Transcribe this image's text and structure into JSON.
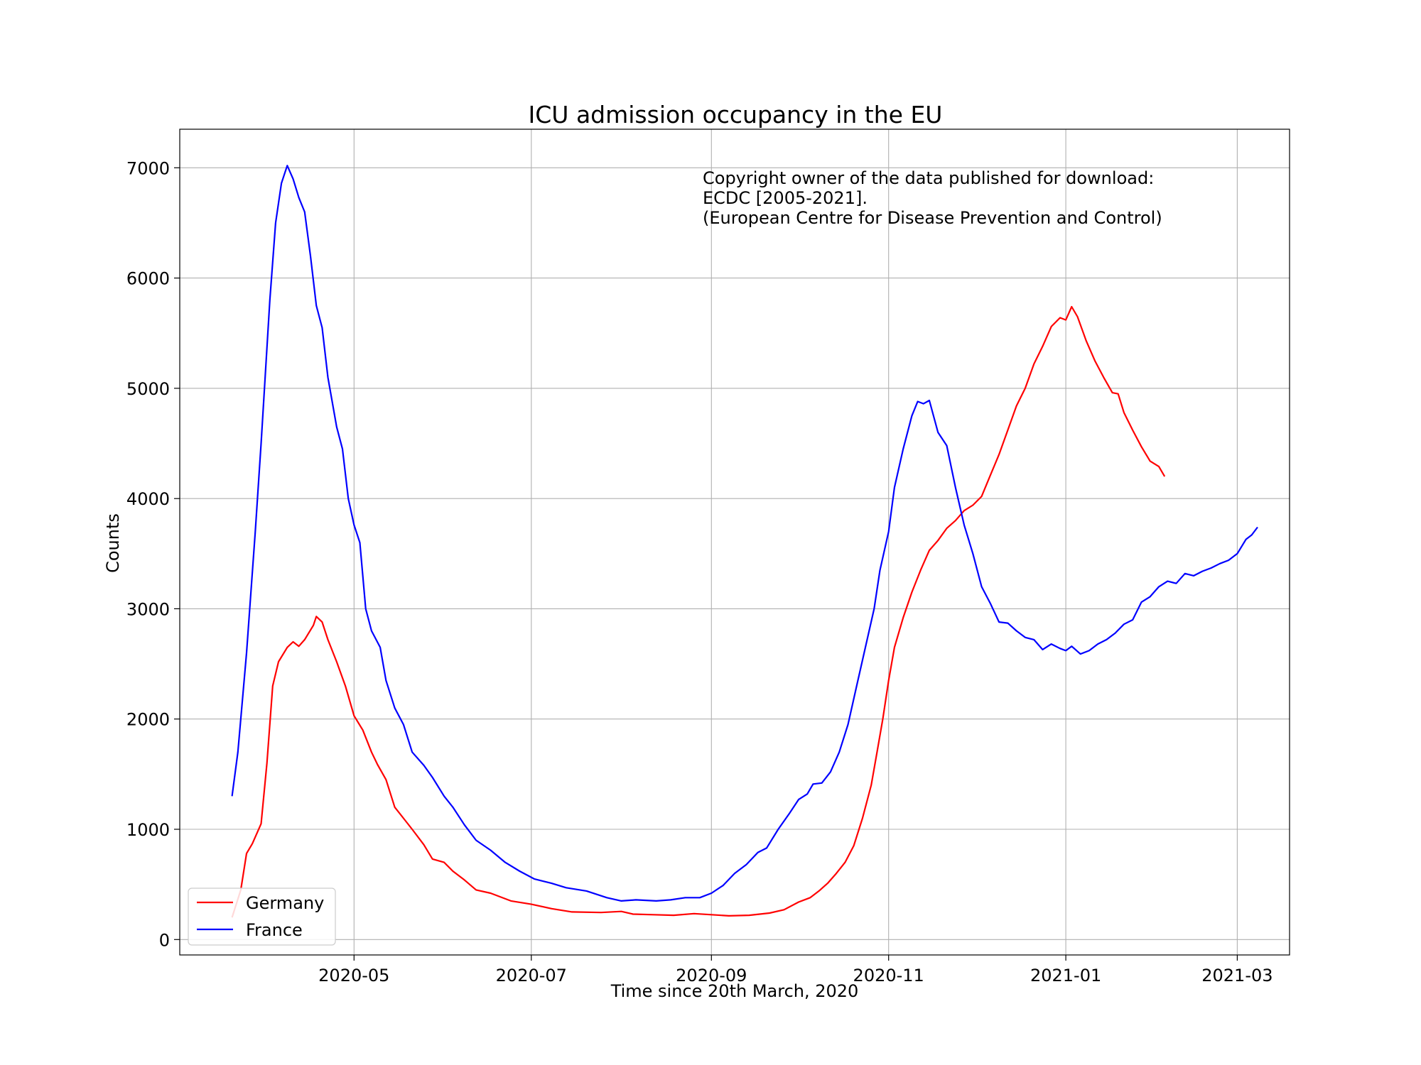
{
  "chart_data": {
    "type": "line",
    "title": "ICU admission occupancy in the EU",
    "xlabel": "Time since 20th March, 2020",
    "ylabel": "Counts",
    "x_range": [
      "2020-03-02",
      "2021-03-19"
    ],
    "ylim": [
      -140,
      7350
    ],
    "x_ticks": [
      "2020-05",
      "2020-07",
      "2020-09",
      "2020-11",
      "2021-01",
      "2021-03"
    ],
    "y_ticks": [
      0,
      1000,
      2000,
      3000,
      4000,
      5000,
      6000,
      7000
    ],
    "grid": true,
    "legend_position": "bottom-left",
    "annotation": [
      "Copyright owner of the data published for download:",
      "ECDC [2005-2021].",
      "(European Centre for Disease Prevention and Control)"
    ],
    "series": [
      {
        "name": "Germany",
        "color": "#ff0000",
        "points": [
          [
            "2020-03-20",
            200
          ],
          [
            "2020-03-23",
            450
          ],
          [
            "2020-03-25",
            780
          ],
          [
            "2020-03-27",
            870
          ],
          [
            "2020-03-30",
            1050
          ],
          [
            "2020-04-01",
            1600
          ],
          [
            "2020-04-03",
            2300
          ],
          [
            "2020-04-05",
            2520
          ],
          [
            "2020-04-08",
            2650
          ],
          [
            "2020-04-10",
            2700
          ],
          [
            "2020-04-12",
            2660
          ],
          [
            "2020-04-14",
            2720
          ],
          [
            "2020-04-17",
            2850
          ],
          [
            "2020-04-18",
            2930
          ],
          [
            "2020-04-20",
            2880
          ],
          [
            "2020-04-22",
            2720
          ],
          [
            "2020-04-25",
            2520
          ],
          [
            "2020-04-28",
            2300
          ],
          [
            "2020-05-01",
            2030
          ],
          [
            "2020-05-04",
            1900
          ],
          [
            "2020-05-07",
            1700
          ],
          [
            "2020-05-09",
            1590
          ],
          [
            "2020-05-12",
            1450
          ],
          [
            "2020-05-15",
            1200
          ],
          [
            "2020-05-18",
            1100
          ],
          [
            "2020-05-21",
            1000
          ],
          [
            "2020-05-25",
            860
          ],
          [
            "2020-05-28",
            730
          ],
          [
            "2020-06-01",
            700
          ],
          [
            "2020-06-04",
            620
          ],
          [
            "2020-06-08",
            540
          ],
          [
            "2020-06-12",
            450
          ],
          [
            "2020-06-17",
            420
          ],
          [
            "2020-06-24",
            350
          ],
          [
            "2020-07-01",
            320
          ],
          [
            "2020-07-08",
            280
          ],
          [
            "2020-07-15",
            250
          ],
          [
            "2020-07-25",
            245
          ],
          [
            "2020-08-01",
            255
          ],
          [
            "2020-08-05",
            230
          ],
          [
            "2020-08-12",
            225
          ],
          [
            "2020-08-19",
            220
          ],
          [
            "2020-08-26",
            235
          ],
          [
            "2020-09-01",
            225
          ],
          [
            "2020-09-07",
            215
          ],
          [
            "2020-09-14",
            220
          ],
          [
            "2020-09-21",
            240
          ],
          [
            "2020-09-26",
            270
          ],
          [
            "2020-10-01",
            340
          ],
          [
            "2020-10-05",
            380
          ],
          [
            "2020-10-08",
            440
          ],
          [
            "2020-10-11",
            510
          ],
          [
            "2020-10-14",
            600
          ],
          [
            "2020-10-17",
            700
          ],
          [
            "2020-10-20",
            850
          ],
          [
            "2020-10-23",
            1100
          ],
          [
            "2020-10-26",
            1400
          ],
          [
            "2020-10-28",
            1700
          ],
          [
            "2020-10-30",
            2000
          ],
          [
            "2020-11-01",
            2350
          ],
          [
            "2020-11-03",
            2650
          ],
          [
            "2020-11-06",
            2920
          ],
          [
            "2020-11-09",
            3150
          ],
          [
            "2020-11-12",
            3350
          ],
          [
            "2020-11-15",
            3530
          ],
          [
            "2020-11-18",
            3620
          ],
          [
            "2020-11-21",
            3730
          ],
          [
            "2020-11-24",
            3800
          ],
          [
            "2020-11-27",
            3890
          ],
          [
            "2020-11-30",
            3940
          ],
          [
            "2020-12-03",
            4020
          ],
          [
            "2020-12-06",
            4210
          ],
          [
            "2020-12-09",
            4400
          ],
          [
            "2020-12-12",
            4620
          ],
          [
            "2020-12-15",
            4840
          ],
          [
            "2020-12-18",
            5000
          ],
          [
            "2020-12-21",
            5220
          ],
          [
            "2020-12-24",
            5380
          ],
          [
            "2020-12-27",
            5560
          ],
          [
            "2020-12-30",
            5640
          ],
          [
            "2021-01-01",
            5620
          ],
          [
            "2021-01-03",
            5740
          ],
          [
            "2021-01-05",
            5650
          ],
          [
            "2021-01-08",
            5430
          ],
          [
            "2021-01-11",
            5250
          ],
          [
            "2021-01-14",
            5100
          ],
          [
            "2021-01-17",
            4960
          ],
          [
            "2021-01-19",
            4950
          ],
          [
            "2021-01-21",
            4780
          ],
          [
            "2021-01-24",
            4620
          ],
          [
            "2021-01-27",
            4470
          ],
          [
            "2021-01-30",
            4340
          ],
          [
            "2021-02-02",
            4290
          ],
          [
            "2021-02-04",
            4200
          ]
        ]
      },
      {
        "name": "France",
        "color": "#0000ff",
        "points": [
          [
            "2020-03-20",
            1300
          ],
          [
            "2020-03-22",
            1700
          ],
          [
            "2020-03-25",
            2600
          ],
          [
            "2020-03-28",
            3700
          ],
          [
            "2020-03-30",
            4500
          ],
          [
            "2020-04-02",
            5800
          ],
          [
            "2020-04-04",
            6500
          ],
          [
            "2020-04-06",
            6860
          ],
          [
            "2020-04-08",
            7020
          ],
          [
            "2020-04-10",
            6900
          ],
          [
            "2020-04-12",
            6730
          ],
          [
            "2020-04-14",
            6600
          ],
          [
            "2020-04-16",
            6200
          ],
          [
            "2020-04-18",
            5750
          ],
          [
            "2020-04-20",
            5550
          ],
          [
            "2020-04-22",
            5100
          ],
          [
            "2020-04-25",
            4650
          ],
          [
            "2020-04-27",
            4450
          ],
          [
            "2020-04-29",
            4000
          ],
          [
            "2020-05-01",
            3760
          ],
          [
            "2020-05-03",
            3600
          ],
          [
            "2020-05-05",
            3000
          ],
          [
            "2020-05-07",
            2800
          ],
          [
            "2020-05-10",
            2650
          ],
          [
            "2020-05-12",
            2350
          ],
          [
            "2020-05-15",
            2100
          ],
          [
            "2020-05-18",
            1950
          ],
          [
            "2020-05-21",
            1700
          ],
          [
            "2020-05-25",
            1580
          ],
          [
            "2020-05-28",
            1470
          ],
          [
            "2020-06-01",
            1300
          ],
          [
            "2020-06-04",
            1200
          ],
          [
            "2020-06-08",
            1040
          ],
          [
            "2020-06-12",
            900
          ],
          [
            "2020-06-17",
            810
          ],
          [
            "2020-06-22",
            700
          ],
          [
            "2020-06-27",
            620
          ],
          [
            "2020-07-02",
            550
          ],
          [
            "2020-07-08",
            510
          ],
          [
            "2020-07-13",
            470
          ],
          [
            "2020-07-20",
            440
          ],
          [
            "2020-07-27",
            380
          ],
          [
            "2020-08-01",
            350
          ],
          [
            "2020-08-06",
            360
          ],
          [
            "2020-08-13",
            350
          ],
          [
            "2020-08-18",
            360
          ],
          [
            "2020-08-23",
            380
          ],
          [
            "2020-08-28",
            380
          ],
          [
            "2020-09-01",
            420
          ],
          [
            "2020-09-05",
            490
          ],
          [
            "2020-09-09",
            600
          ],
          [
            "2020-09-13",
            680
          ],
          [
            "2020-09-17",
            790
          ],
          [
            "2020-09-20",
            830
          ],
          [
            "2020-09-24",
            1000
          ],
          [
            "2020-09-28",
            1150
          ],
          [
            "2020-10-01",
            1270
          ],
          [
            "2020-10-04",
            1320
          ],
          [
            "2020-10-06",
            1410
          ],
          [
            "2020-10-09",
            1420
          ],
          [
            "2020-10-12",
            1520
          ],
          [
            "2020-10-15",
            1700
          ],
          [
            "2020-10-18",
            1950
          ],
          [
            "2020-10-21",
            2300
          ],
          [
            "2020-10-24",
            2650
          ],
          [
            "2020-10-27",
            3000
          ],
          [
            "2020-10-29",
            3350
          ],
          [
            "2020-11-01",
            3700
          ],
          [
            "2020-11-03",
            4100
          ],
          [
            "2020-11-06",
            4450
          ],
          [
            "2020-11-09",
            4750
          ],
          [
            "2020-11-11",
            4880
          ],
          [
            "2020-11-13",
            4860
          ],
          [
            "2020-11-15",
            4890
          ],
          [
            "2020-11-18",
            4600
          ],
          [
            "2020-11-21",
            4480
          ],
          [
            "2020-11-24",
            4100
          ],
          [
            "2020-11-27",
            3760
          ],
          [
            "2020-11-30",
            3500
          ],
          [
            "2020-12-03",
            3200
          ],
          [
            "2020-12-06",
            3050
          ],
          [
            "2020-12-09",
            2880
          ],
          [
            "2020-12-12",
            2870
          ],
          [
            "2020-12-15",
            2800
          ],
          [
            "2020-12-18",
            2740
          ],
          [
            "2020-12-21",
            2720
          ],
          [
            "2020-12-24",
            2630
          ],
          [
            "2020-12-27",
            2680
          ],
          [
            "2020-12-30",
            2640
          ],
          [
            "2021-01-01",
            2620
          ],
          [
            "2021-01-03",
            2660
          ],
          [
            "2021-01-06",
            2590
          ],
          [
            "2021-01-09",
            2620
          ],
          [
            "2021-01-12",
            2680
          ],
          [
            "2021-01-15",
            2720
          ],
          [
            "2021-01-18",
            2780
          ],
          [
            "2021-01-21",
            2860
          ],
          [
            "2021-01-24",
            2900
          ],
          [
            "2021-01-27",
            3060
          ],
          [
            "2021-01-30",
            3110
          ],
          [
            "2021-02-02",
            3200
          ],
          [
            "2021-02-05",
            3250
          ],
          [
            "2021-02-08",
            3230
          ],
          [
            "2021-02-11",
            3320
          ],
          [
            "2021-02-14",
            3300
          ],
          [
            "2021-02-17",
            3340
          ],
          [
            "2021-02-20",
            3370
          ],
          [
            "2021-02-23",
            3410
          ],
          [
            "2021-02-26",
            3440
          ],
          [
            "2021-03-01",
            3500
          ],
          [
            "2021-03-04",
            3630
          ],
          [
            "2021-03-06",
            3670
          ],
          [
            "2021-03-08",
            3740
          ]
        ]
      }
    ]
  }
}
